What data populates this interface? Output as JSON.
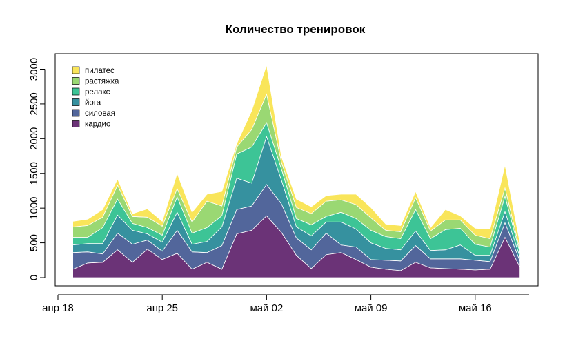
{
  "chart_data": {
    "type": "area",
    "stacked": true,
    "title": "Количество тренировок",
    "xlabel": "",
    "ylabel": "",
    "x": [
      "2021-04-19",
      "2021-04-20",
      "2021-04-21",
      "2021-04-22",
      "2021-04-23",
      "2021-04-24",
      "2021-04-25",
      "2021-04-26",
      "2021-04-27",
      "2021-04-28",
      "2021-04-29",
      "2021-04-30",
      "2021-05-01",
      "2021-05-02",
      "2021-05-03",
      "2021-05-04",
      "2021-05-05",
      "2021-05-06",
      "2021-05-07",
      "2021-05-08",
      "2021-05-09",
      "2021-05-10",
      "2021-05-11",
      "2021-05-12",
      "2021-05-13",
      "2021-05-14",
      "2021-05-15",
      "2021-05-16",
      "2021-05-17",
      "2021-05-18",
      "2021-05-19"
    ],
    "x_ticks": [
      {
        "date": "2021-04-18",
        "label": "апр 18"
      },
      {
        "date": "2021-04-25",
        "label": "апр 25"
      },
      {
        "date": "2021-05-02",
        "label": "май 02"
      },
      {
        "date": "2021-05-09",
        "label": "май 09"
      },
      {
        "date": "2021-05-16",
        "label": "май 16"
      }
    ],
    "y_ticks": [
      "0",
      "500",
      "1000",
      "1500",
      "2000",
      "2500",
      "3000"
    ],
    "ylim": [
      0,
      3100
    ],
    "series": [
      {
        "name": "кардио",
        "color": "#6B3377",
        "values": [
          120,
          210,
          220,
          400,
          220,
          410,
          260,
          350,
          120,
          220,
          120,
          630,
          680,
          890,
          650,
          320,
          130,
          330,
          360,
          260,
          150,
          120,
          100,
          220,
          140,
          130,
          120,
          110,
          120,
          580,
          150
        ]
      },
      {
        "name": "силовая",
        "color": "#52669B",
        "values": [
          240,
          160,
          120,
          240,
          260,
          130,
          120,
          330,
          250,
          140,
          340,
          350,
          350,
          450,
          410,
          250,
          270,
          310,
          110,
          180,
          110,
          130,
          140,
          240,
          130,
          140,
          150,
          140,
          110,
          210,
          90
        ]
      },
      {
        "name": "йога",
        "color": "#36919F",
        "values": [
          110,
          120,
          150,
          260,
          200,
          90,
          130,
          260,
          110,
          160,
          270,
          450,
          330,
          690,
          340,
          160,
          200,
          160,
          330,
          260,
          240,
          170,
          160,
          210,
          120,
          130,
          200,
          70,
          90,
          160,
          60
        ]
      },
      {
        "name": "релакс",
        "color": "#3DC496",
        "values": [
          110,
          90,
          230,
          230,
          100,
          90,
          100,
          220,
          160,
          200,
          160,
          350,
          520,
          200,
          160,
          120,
          160,
          80,
          140,
          150,
          180,
          170,
          160,
          310,
          170,
          290,
          240,
          160,
          120,
          220,
          60
        ]
      },
      {
        "name": "растяжка",
        "color": "#9AD873",
        "values": [
          150,
          170,
          150,
          200,
          100,
          150,
          130,
          120,
          160,
          380,
          140,
          100,
          250,
          410,
          100,
          160,
          160,
          220,
          180,
          200,
          180,
          90,
          100,
          170,
          110,
          140,
          120,
          130,
          120,
          120,
          40
        ]
      },
      {
        "name": "пилатес",
        "color": "#F9E55A",
        "values": [
          80,
          90,
          110,
          90,
          40,
          120,
          70,
          220,
          140,
          100,
          210,
          50,
          270,
          420,
          80,
          120,
          100,
          80,
          80,
          150,
          150,
          90,
          90,
          90,
          50,
          150,
          60,
          100,
          140,
          330,
          100
        ]
      }
    ],
    "legend": {
      "position": "top-left",
      "order": [
        "пилатес",
        "растяжка",
        "релакс",
        "йога",
        "силовая",
        "кардио"
      ]
    },
    "grid": false
  }
}
